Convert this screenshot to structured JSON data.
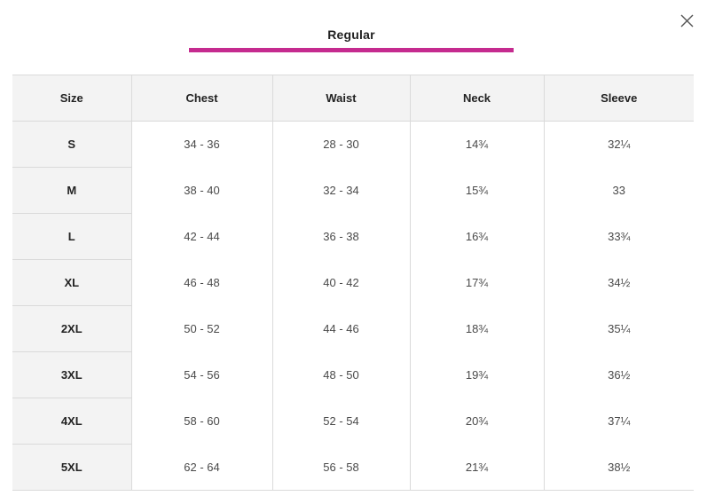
{
  "dialog": {
    "close_icon": "close-icon",
    "tab_label": "Regular",
    "tab_accent_color": "#c52b8f"
  },
  "table": {
    "headers": [
      "Size",
      "Chest",
      "Waist",
      "Neck",
      "Sleeve"
    ],
    "rows": [
      [
        "S",
        "34 - 36",
        "28 - 30",
        "14¾",
        "32¼"
      ],
      [
        "M",
        "38 - 40",
        "32 - 34",
        "15¾",
        "33"
      ],
      [
        "L",
        "42 - 44",
        "36 - 38",
        "16¾",
        "33¾"
      ],
      [
        "XL",
        "46 - 48",
        "40 - 42",
        "17¾",
        "34½"
      ],
      [
        "2XL",
        "50 - 52",
        "44 - 46",
        "18¾",
        "35¼"
      ],
      [
        "3XL",
        "54 - 56",
        "48 - 50",
        "19¾",
        "36½"
      ],
      [
        "4XL",
        "58 - 60",
        "52 - 54",
        "20¾",
        "37¼"
      ],
      [
        "5XL",
        "62 - 64",
        "56 - 58",
        "21¾",
        "38½"
      ]
    ]
  }
}
